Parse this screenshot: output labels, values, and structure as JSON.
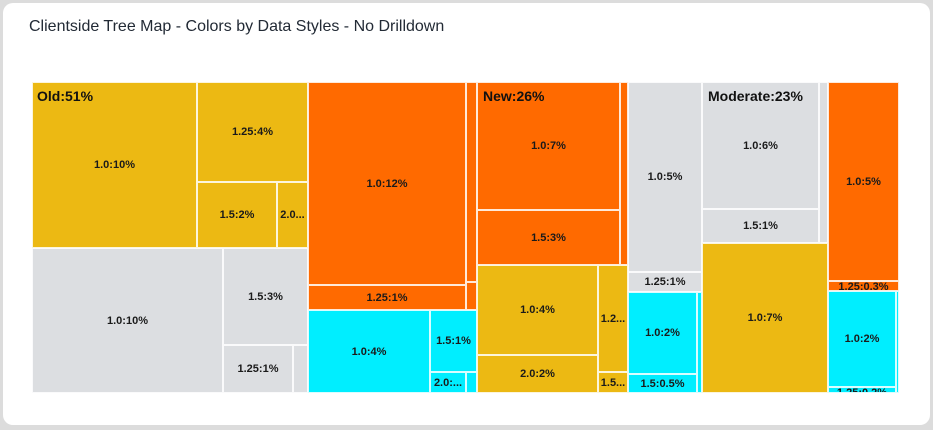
{
  "title": "Clientside Tree Map - Colors by Data Styles - No Drilldown",
  "colors": {
    "yellow": "#ecb913",
    "orange": "#ff6a00",
    "gray": "#dcdee1",
    "cyan": "#00eeff"
  },
  "chart_data": {
    "type": "treemap",
    "title": "Clientside Tree Map - Colors by Data Styles - No Drilldown",
    "groups": [
      {
        "label": "Old:51%",
        "name": "Old",
        "percent": 51
      },
      {
        "label": "New:26%",
        "name": "New",
        "percent": 26
      },
      {
        "label": "Moderate:23%",
        "name": "Moderate",
        "percent": 23
      }
    ],
    "cells": [
      {
        "group": "Old",
        "color": "yellow",
        "label": "1.0:10%"
      },
      {
        "group": "Old",
        "color": "yellow",
        "label": "1.25:4%"
      },
      {
        "group": "Old",
        "color": "yellow",
        "label": "1.5:2%"
      },
      {
        "group": "Old",
        "color": "yellow",
        "label": "2.0..."
      },
      {
        "group": "Old",
        "color": "gray",
        "label": "1.0:10%"
      },
      {
        "group": "Old",
        "color": "gray",
        "label": "1.5:3%"
      },
      {
        "group": "Old",
        "color": "gray",
        "label": "1.25:1%"
      },
      {
        "group": "Old",
        "color": "gray",
        "label": ""
      },
      {
        "group": "Old",
        "color": "orange",
        "label": "1.0:12%"
      },
      {
        "group": "Old",
        "color": "orange",
        "label": ""
      },
      {
        "group": "Old",
        "color": "orange",
        "label": "1.25:1%"
      },
      {
        "group": "Old",
        "color": "orange",
        "label": ""
      },
      {
        "group": "Old",
        "color": "cyan",
        "label": "1.0:4%"
      },
      {
        "group": "Old",
        "color": "cyan",
        "label": "1.5:1%"
      },
      {
        "group": "Old",
        "color": "cyan",
        "label": "2.0:..."
      },
      {
        "group": "Old",
        "color": "cyan",
        "label": ""
      },
      {
        "group": "New",
        "color": "orange",
        "label": "1.0:7%"
      },
      {
        "group": "New",
        "color": "orange",
        "label": "1.5:3%"
      },
      {
        "group": "New",
        "color": "orange",
        "label": ""
      },
      {
        "group": "New",
        "color": "gray",
        "label": "1.0:5%"
      },
      {
        "group": "New",
        "color": "gray",
        "label": "1.25:1%"
      },
      {
        "group": "New",
        "color": "yellow",
        "label": "1.0:4%"
      },
      {
        "group": "New",
        "color": "yellow",
        "label": "2.0:2%"
      },
      {
        "group": "New",
        "color": "yellow",
        "label": "1.2..."
      },
      {
        "group": "New",
        "color": "yellow",
        "label": "1.5..."
      },
      {
        "group": "New",
        "color": "cyan",
        "label": "1.0:2%"
      },
      {
        "group": "New",
        "color": "cyan",
        "label": "1.5:0.5%"
      },
      {
        "group": "New",
        "color": "cyan",
        "label": ""
      },
      {
        "group": "Moderate",
        "color": "gray",
        "label": "1.0:6%"
      },
      {
        "group": "Moderate",
        "color": "gray",
        "label": "1.5:1%"
      },
      {
        "group": "Moderate",
        "color": "gray",
        "label": ""
      },
      {
        "group": "Moderate",
        "color": "yellow",
        "label": "1.0:7%"
      },
      {
        "group": "Moderate",
        "color": "orange",
        "label": "1.0:5%"
      },
      {
        "group": "Moderate",
        "color": "orange",
        "label": "1.25:0.3%"
      },
      {
        "group": "Moderate",
        "color": "cyan",
        "label": "1.0:2%"
      },
      {
        "group": "Moderate",
        "color": "cyan",
        "label": "1.25:0.2%"
      },
      {
        "group": "Moderate",
        "color": "cyan",
        "label": ""
      }
    ]
  }
}
